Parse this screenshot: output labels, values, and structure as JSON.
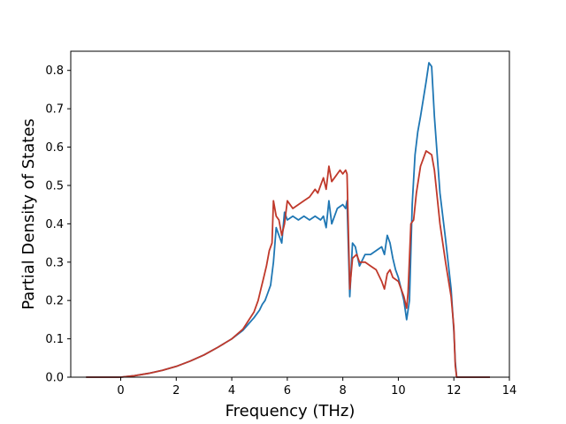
{
  "chart_data": {
    "type": "line",
    "title": "",
    "xlabel": "Frequency (THz)",
    "ylabel": "Partial Density of States",
    "xlim": [
      -1.8,
      14
    ],
    "ylim": [
      0,
      0.85
    ],
    "xticks": [
      0,
      2,
      4,
      6,
      8,
      10,
      12,
      14
    ],
    "xtick_labels": [
      "0",
      "2",
      "4",
      "6",
      "8",
      "10",
      "12",
      "14"
    ],
    "yticks": [
      0.0,
      0.1,
      0.2,
      0.3,
      0.4,
      0.5,
      0.6,
      0.7,
      0.8
    ],
    "ytick_labels": [
      "0.0",
      "0.1",
      "0.2",
      "0.3",
      "0.4",
      "0.5",
      "0.6",
      "0.7",
      "0.8"
    ],
    "grid": false,
    "series": [
      {
        "color": "#1f77b4",
        "x": [
          -1.25,
          0.0,
          0.5,
          1.0,
          1.5,
          2.0,
          2.5,
          3.0,
          3.5,
          4.0,
          4.4,
          4.8,
          5.0,
          5.1,
          5.2,
          5.3,
          5.4,
          5.5,
          5.6,
          5.7,
          5.8,
          5.9,
          6.0,
          6.2,
          6.4,
          6.6,
          6.8,
          7.0,
          7.2,
          7.3,
          7.4,
          7.5,
          7.6,
          7.8,
          8.0,
          8.1,
          8.15,
          8.25,
          8.35,
          8.45,
          8.6,
          8.8,
          9.0,
          9.2,
          9.4,
          9.5,
          9.6,
          9.7,
          9.8,
          9.9,
          10.0,
          10.1,
          10.2,
          10.3,
          10.4,
          10.5,
          10.6,
          10.7,
          10.8,
          11.0,
          11.1,
          11.2,
          11.3,
          11.5,
          11.7,
          11.9,
          12.0,
          12.05,
          12.1,
          13.3
        ],
        "y": [
          0.0,
          0.0,
          0.004,
          0.01,
          0.018,
          0.028,
          0.042,
          0.058,
          0.078,
          0.1,
          0.122,
          0.155,
          0.175,
          0.19,
          0.2,
          0.22,
          0.24,
          0.3,
          0.39,
          0.37,
          0.35,
          0.43,
          0.41,
          0.42,
          0.41,
          0.42,
          0.41,
          0.42,
          0.41,
          0.42,
          0.39,
          0.46,
          0.4,
          0.44,
          0.45,
          0.44,
          0.46,
          0.21,
          0.35,
          0.34,
          0.29,
          0.32,
          0.32,
          0.33,
          0.34,
          0.32,
          0.37,
          0.35,
          0.31,
          0.28,
          0.26,
          0.23,
          0.2,
          0.15,
          0.2,
          0.45,
          0.58,
          0.64,
          0.68,
          0.77,
          0.82,
          0.81,
          0.68,
          0.48,
          0.36,
          0.23,
          0.12,
          0.04,
          0.0,
          0.0
        ]
      },
      {
        "color": "#c0392b",
        "x": [
          -1.25,
          0.0,
          0.5,
          1.0,
          1.5,
          2.0,
          2.5,
          3.0,
          3.5,
          4.0,
          4.4,
          4.8,
          4.95,
          5.05,
          5.15,
          5.25,
          5.35,
          5.45,
          5.5,
          5.6,
          5.7,
          5.8,
          5.9,
          6.0,
          6.2,
          6.4,
          6.6,
          6.8,
          7.0,
          7.1,
          7.2,
          7.3,
          7.4,
          7.5,
          7.6,
          7.7,
          7.8,
          7.9,
          8.0,
          8.1,
          8.15,
          8.25,
          8.35,
          8.5,
          8.6,
          8.8,
          9.0,
          9.2,
          9.4,
          9.5,
          9.6,
          9.7,
          9.8,
          10.0,
          10.1,
          10.2,
          10.3,
          10.35,
          10.45,
          10.55,
          10.65,
          10.8,
          11.0,
          11.1,
          11.2,
          11.3,
          11.5,
          11.7,
          11.9,
          12.0,
          12.05,
          12.1,
          13.3
        ],
        "y": [
          0.0,
          0.0,
          0.004,
          0.01,
          0.018,
          0.028,
          0.042,
          0.058,
          0.078,
          0.1,
          0.125,
          0.17,
          0.2,
          0.23,
          0.26,
          0.29,
          0.33,
          0.35,
          0.46,
          0.42,
          0.41,
          0.37,
          0.4,
          0.46,
          0.44,
          0.45,
          0.46,
          0.47,
          0.49,
          0.48,
          0.5,
          0.52,
          0.49,
          0.55,
          0.51,
          0.52,
          0.53,
          0.54,
          0.53,
          0.54,
          0.53,
          0.23,
          0.31,
          0.32,
          0.3,
          0.3,
          0.29,
          0.28,
          0.25,
          0.23,
          0.27,
          0.28,
          0.26,
          0.25,
          0.23,
          0.21,
          0.18,
          0.22,
          0.4,
          0.41,
          0.48,
          0.55,
          0.59,
          0.585,
          0.58,
          0.54,
          0.4,
          0.3,
          0.21,
          0.13,
          0.03,
          0.0,
          0.0
        ]
      }
    ]
  }
}
